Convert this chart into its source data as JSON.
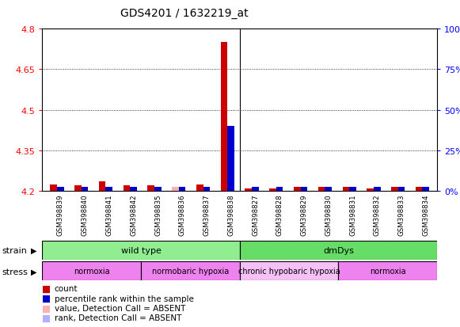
{
  "title": "GDS4201 / 1632219_at",
  "samples": [
    "GSM398839",
    "GSM398840",
    "GSM398841",
    "GSM398842",
    "GSM398835",
    "GSM398836",
    "GSM398837",
    "GSM398838",
    "GSM398827",
    "GSM398828",
    "GSM398829",
    "GSM398830",
    "GSM398831",
    "GSM398832",
    "GSM398833",
    "GSM398834"
  ],
  "red_values": [
    4.225,
    4.22,
    4.235,
    4.22,
    4.22,
    4.215,
    4.225,
    4.75,
    4.21,
    4.21,
    4.215,
    4.215,
    4.215,
    4.21,
    4.215,
    4.215
  ],
  "blue_values": [
    4.215,
    4.215,
    4.215,
    4.215,
    4.215,
    4.215,
    4.215,
    4.44,
    4.215,
    4.215,
    4.215,
    4.215,
    4.215,
    4.215,
    4.215,
    4.215
  ],
  "absent_red": [
    false,
    false,
    false,
    false,
    false,
    true,
    false,
    false,
    false,
    false,
    false,
    false,
    false,
    false,
    false,
    false
  ],
  "absent_blue": [
    false,
    false,
    false,
    false,
    false,
    false,
    false,
    false,
    false,
    false,
    false,
    false,
    false,
    false,
    false,
    false
  ],
  "ymin": 4.2,
  "ymax": 4.8,
  "y_ticks": [
    4.2,
    4.35,
    4.5,
    4.65,
    4.8
  ],
  "y2_ticks": [
    0,
    25,
    50,
    75,
    100
  ],
  "bar_width": 0.28,
  "base": 4.2,
  "red_color": "#CC0000",
  "blue_color": "#0000CC",
  "absent_red_color": "#FFB0B0",
  "absent_blue_color": "#B0B0FF",
  "plot_bg": "#FFFFFF",
  "label_bg": "#C8C8C8",
  "strain_wt_color": "#90EE90",
  "strain_dm_color": "#66DD66",
  "stress_norm_color": "#EE82EE",
  "stress_nhyp_color": "#EE82EE",
  "stress_chyp_color": "#F5C0F5",
  "separator_color": "#000000",
  "legend_items": [
    {
      "label": "count",
      "color": "#CC0000"
    },
    {
      "label": "percentile rank within the sample",
      "color": "#0000CC"
    },
    {
      "label": "value, Detection Call = ABSENT",
      "color": "#FFB0B0"
    },
    {
      "label": "rank, Detection Call = ABSENT",
      "color": "#B0B0FF"
    }
  ]
}
